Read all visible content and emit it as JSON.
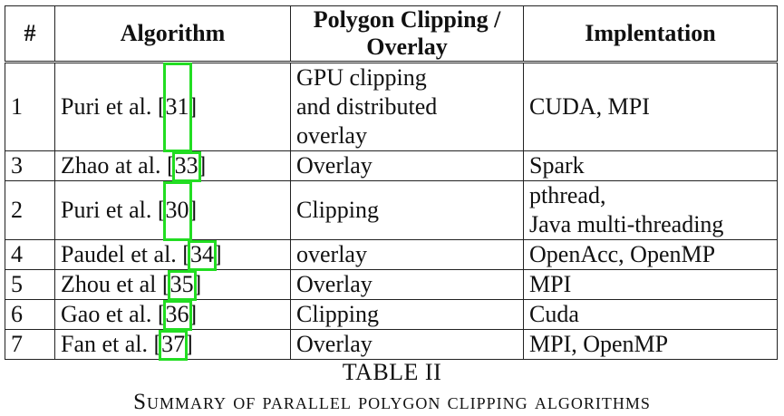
{
  "table": {
    "headers": [
      "#",
      "Algorithm",
      "Polygon Clipping / Overlay",
      "Implentation"
    ],
    "rows": [
      {
        "num": "1",
        "algorithm": "Puri et al. [31]",
        "clip": [
          "GPU clipping",
          "and distributed",
          "overlay"
        ],
        "impl": [
          "CUDA, MPI"
        ]
      },
      {
        "num": "3",
        "algorithm": "Zhao at al. [33]",
        "clip": [
          "Overlay"
        ],
        "impl": [
          "Spark"
        ]
      },
      {
        "num": "2",
        "algorithm": "Puri et al. [30]",
        "clip": [
          "Clipping"
        ],
        "impl": [
          "pthread,",
          "Java multi-threading"
        ]
      },
      {
        "num": "4",
        "algorithm": "Paudel et al. [34]",
        "clip": [
          "overlay"
        ],
        "impl": [
          "OpenAcc, OpenMP"
        ]
      },
      {
        "num": "5",
        "algorithm": "Zhou et al [35]",
        "clip": [
          "Overlay"
        ],
        "impl": [
          "MPI"
        ]
      },
      {
        "num": "6",
        "algorithm": "Gao et al. [36]",
        "clip": [
          "Clipping"
        ],
        "impl": [
          "Cuda"
        ]
      },
      {
        "num": "7",
        "algorithm": "Fan et al. [37]",
        "clip": [
          "Overlay"
        ],
        "impl": [
          "MPI, OpenMP"
        ]
      }
    ]
  },
  "caption": {
    "label": "TABLE II",
    "title": "Summary of parallel polygon clipping algorithms"
  },
  "colors": {
    "highlight": "#22dd22"
  }
}
